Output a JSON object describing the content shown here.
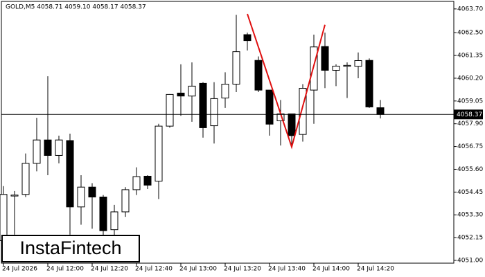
{
  "chart_data": {
    "type": "candlestick",
    "title": "GOLD,M5  4058.71 4059.10 4058.17 4058.37",
    "categories": [
      "24 Jul 2026",
      null,
      null,
      null,
      "24 Jul 12:00",
      null,
      null,
      null,
      "24 Jul 12:20",
      null,
      null,
      null,
      "24 Jul 12:40",
      null,
      null,
      null,
      "24 Jul 13:00",
      null,
      null,
      null,
      "24 Jul 13:20",
      null,
      null,
      null,
      "24 Jul 13:40",
      null,
      null,
      null,
      "24 Jul 14:00",
      null,
      null,
      null,
      "24 Jul 14:20",
      null,
      null
    ],
    "series": [
      {
        "color": "#000000",
        "open": [
          4052.0,
          4054.25,
          4054.33,
          4055.9,
          4057.08,
          4056.3,
          4057.05,
          4053.7,
          4054.7,
          4054.2,
          4052.55,
          4053.45,
          4054.57,
          4055.25,
          4055.0,
          4057.78,
          4059.45,
          4059.3,
          4059.94,
          4057.8,
          4059.2,
          4059.9,
          4062.4,
          4061.1,
          4059.6,
          4058.05,
          4058.4,
          4057.36,
          4059.6,
          4061.8,
          4060.6,
          4060.8,
          4060.8,
          4061.1,
          4058.71
        ],
        "high": [
          4054.75,
          4054.5,
          4056.4,
          4058.2,
          4060.3,
          4057.3,
          4057.4,
          4055.3,
          4054.9,
          4054.3,
          4053.8,
          4054.7,
          4055.7,
          4055.3,
          4057.9,
          4059.4,
          4060.9,
          4061.0,
          4060.0,
          4060.0,
          4060.5,
          4063.4,
          4062.5,
          4061.3,
          4059.6,
          4059.1,
          4058.4,
          4059.9,
          4062.4,
          4062.5,
          4060.9,
          4061.0,
          4061.5,
          4061.2,
          4059.1
        ],
        "low": [
          4051.0,
          4052.3,
          4054.2,
          4055.5,
          4055.3,
          4055.9,
          4052.3,
          4052.8,
          4052.6,
          4052.0,
          4052.0,
          4053.2,
          4054.3,
          4054.6,
          4054.1,
          4057.7,
          4058.3,
          4058.0,
          4057.2,
          4056.9,
          4058.7,
          4059.5,
          4061.6,
          4059.5,
          4057.3,
          4056.8,
          4056.8,
          4057.0,
          4057.9,
          4059.7,
          4059.8,
          4059.2,
          4060.2,
          4058.7,
          4058.17
        ],
        "close": [
          4054.33,
          4054.3,
          4055.9,
          4057.08,
          4056.3,
          4057.08,
          4053.7,
          4054.7,
          4054.2,
          4052.5,
          4053.45,
          4054.57,
          4055.23,
          4054.8,
          4057.78,
          4059.38,
          4059.3,
          4059.8,
          4057.7,
          4059.17,
          4059.9,
          4061.54,
          4062.1,
          4059.6,
          4057.88,
          4058.4,
          4057.3,
          4059.69,
          4061.78,
          4060.6,
          4060.81,
          4060.85,
          4061.09,
          4058.75,
          4058.37
        ]
      }
    ],
    "ylim": [
      4050.86,
      4064.08
    ],
    "yticks": [
      {
        "value": 4051.0,
        "label": "4051.00"
      },
      {
        "value": 4052.15,
        "label": "4052.15"
      },
      {
        "value": 4053.3,
        "label": "4053.30"
      },
      {
        "value": 4054.45,
        "label": "4054.45"
      },
      {
        "value": 4055.6,
        "label": "4055.60"
      },
      {
        "value": 4056.75,
        "label": "4056.75"
      },
      {
        "value": 4057.9,
        "label": "4057.90"
      },
      {
        "value": 4059.05,
        "label": "4059.05"
      },
      {
        "value": 4060.2,
        "label": "4060.20"
      },
      {
        "value": 4061.35,
        "label": "4061.35"
      },
      {
        "value": 4062.5,
        "label": "4062.50"
      },
      {
        "value": 4063.7,
        "label": "4063.70"
      }
    ],
    "last_price": {
      "value": 4058.37,
      "label": "4058.37"
    },
    "pattern_line": {
      "color": "#e01010",
      "x": [
        22,
        26,
        29
      ],
      "values": [
        4063.45,
        4056.73,
        4062.9
      ]
    },
    "watermark": "InstaFintech"
  }
}
